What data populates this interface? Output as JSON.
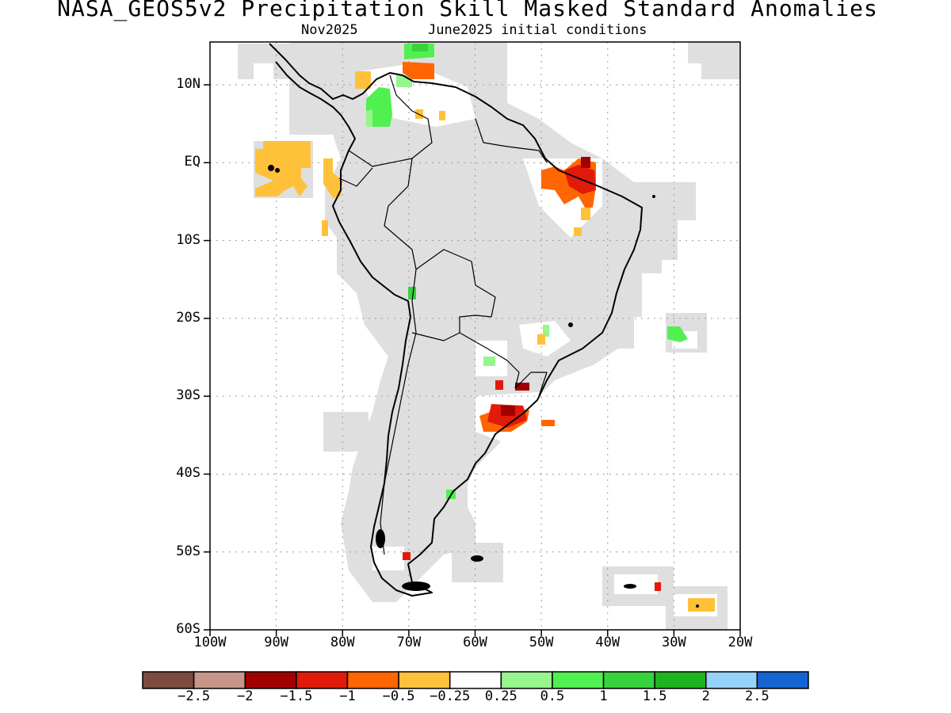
{
  "title": "NASA_GEOS5v2 Precipitation Skill Masked Standard Anomalies",
  "subtitle_left": "Nov2025",
  "subtitle_right": "June2025 initial conditions",
  "colors": {
    "mask_gray": "#dfdfdf",
    "coast": "#000000",
    "neg_0_25": "#ffc13a",
    "neg_0_5": "#ff6500",
    "neg_1": "#e11a0c",
    "neg_1_5": "#a10000",
    "pos_0_25": "#96f58c",
    "pos_0_5": "#50f050",
    "pos_1": "#37d23c"
  },
  "chart_data": {
    "type": "heatmap",
    "projection": "latlon",
    "lon_range": [
      -100,
      -20
    ],
    "lat_range": [
      -60,
      10
    ],
    "grid": true,
    "y_ticks": [
      {
        "lat": 10,
        "label": "10N"
      },
      {
        "lat": 0,
        "label": "EQ"
      },
      {
        "lat": -10,
        "label": "10S"
      },
      {
        "lat": -20,
        "label": "20S"
      },
      {
        "lat": -30,
        "label": "30S"
      },
      {
        "lat": -40,
        "label": "40S"
      },
      {
        "lat": -50,
        "label": "50S"
      },
      {
        "lat": -60,
        "label": "60S"
      }
    ],
    "x_ticks": [
      {
        "lon": -100,
        "label": "100W"
      },
      {
        "lon": -90,
        "label": "90W"
      },
      {
        "lon": -80,
        "label": "80W"
      },
      {
        "lon": -70,
        "label": "70W"
      },
      {
        "lon": -60,
        "label": "60W"
      },
      {
        "lon": -50,
        "label": "50W"
      },
      {
        "lon": -40,
        "label": "40W"
      },
      {
        "lon": -30,
        "label": "30W"
      },
      {
        "lon": -20,
        "label": "20W"
      }
    ],
    "colorbar": {
      "colors": [
        "#7b4b40",
        "#c8958a",
        "#a10000",
        "#e11a0c",
        "#ff6500",
        "#ffc13a",
        "#ffffff",
        "#96f58c",
        "#50f050",
        "#37d23c",
        "#1eb41e",
        "#96d2fa",
        "#1464d2"
      ],
      "labels": [
        "−2.5",
        "−2",
        "−1.5",
        "−1",
        "−0.5",
        "−0.25",
        "0.25",
        "0.5",
        "1",
        "1.5",
        "2",
        "2.5"
      ]
    }
  }
}
